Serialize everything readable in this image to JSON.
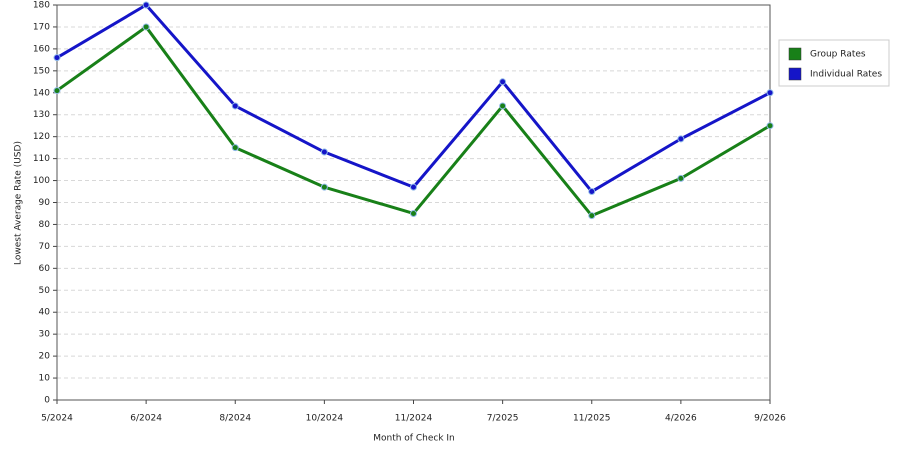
{
  "chart_data": {
    "type": "line",
    "x_label": "Month of Check In",
    "y_label": "Lowest Average Rate (USD)",
    "categories": [
      "5/2024",
      "6/2024",
      "8/2024",
      "10/2024",
      "11/2024",
      "7/2025",
      "11/2025",
      "4/2026",
      "9/2026"
    ],
    "series": [
      {
        "name": "Group Rates",
        "color": "#188018",
        "values": [
          141,
          170,
          115,
          97,
          85,
          134,
          84,
          101,
          125
        ]
      },
      {
        "name": "Individual Rates",
        "color": "#1515c8",
        "values": [
          156,
          180,
          134,
          113,
          97,
          145,
          95,
          119,
          140
        ]
      }
    ],
    "ylim": [
      0,
      180
    ],
    "yticks": [
      0,
      10,
      20,
      30,
      40,
      50,
      60,
      70,
      80,
      90,
      100,
      110,
      120,
      130,
      140,
      150,
      160,
      170,
      180
    ],
    "grid": true,
    "legend": "right"
  }
}
